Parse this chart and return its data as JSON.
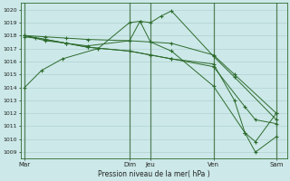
{
  "bg_color": "#cce8e8",
  "grid_color": "#aacccc",
  "line_color": "#2d6b2d",
  "spine_color": "#2d6b2d",
  "title": "Pression niveau de la mer( hPa )",
  "ylim": [
    1008.5,
    1020.5
  ],
  "yticks": [
    1009,
    1010,
    1011,
    1012,
    1013,
    1014,
    1015,
    1016,
    1017,
    1018,
    1019,
    1020
  ],
  "xtick_labels": [
    "Mar",
    "Dim",
    "Jeu",
    "Ven",
    "Sam"
  ],
  "xtick_positions": [
    0,
    5,
    6,
    9,
    12
  ],
  "xlim": [
    -0.2,
    12.5
  ],
  "x_vlines": [
    0,
    5,
    6,
    9,
    12
  ],
  "series": [
    {
      "x": [
        0,
        0.8,
        1.8,
        3.5,
        5,
        5.5,
        6,
        6.5,
        7,
        9,
        10,
        12
      ],
      "y": [
        1014.0,
        1015.3,
        1016.2,
        1017.0,
        1019.0,
        1019.1,
        1019.0,
        1019.5,
        1019.9,
        1016.4,
        1014.8,
        1011.5
      ]
    },
    {
      "x": [
        0,
        1,
        2,
        3,
        5,
        6,
        7,
        9,
        10,
        12
      ],
      "y": [
        1018.0,
        1017.9,
        1017.8,
        1017.7,
        1017.6,
        1017.5,
        1017.4,
        1016.5,
        1015.0,
        1012.0
      ]
    },
    {
      "x": [
        0,
        1,
        2,
        3,
        5,
        5.5,
        6,
        7,
        9,
        10.5,
        11,
        12
      ],
      "y": [
        1017.9,
        1017.7,
        1017.4,
        1017.2,
        1017.6,
        1019.1,
        1017.5,
        1016.8,
        1014.1,
        1010.5,
        1009.0,
        1010.2
      ]
    },
    {
      "x": [
        0,
        0.5,
        1,
        2,
        3,
        5,
        6,
        7,
        9,
        10.5,
        11,
        12
      ],
      "y": [
        1018.0,
        1017.8,
        1017.6,
        1017.4,
        1017.1,
        1016.8,
        1016.5,
        1016.2,
        1015.6,
        1012.5,
        1011.5,
        1011.2
      ]
    },
    {
      "x": [
        0,
        1,
        2,
        3,
        5,
        6,
        7,
        9,
        10,
        10.5,
        11,
        12
      ],
      "y": [
        1018.0,
        1017.7,
        1017.4,
        1017.1,
        1016.8,
        1016.5,
        1016.2,
        1015.8,
        1013.0,
        1010.5,
        1009.8,
        1012.0
      ]
    }
  ]
}
